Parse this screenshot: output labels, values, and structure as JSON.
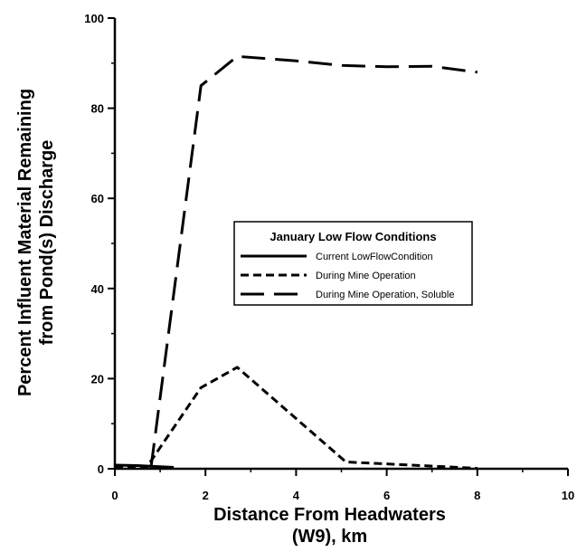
{
  "chart_data": {
    "type": "line",
    "title": "",
    "xlabel_lines": [
      "Distance From Headwaters",
      "(W9), km"
    ],
    "ylabel_lines": [
      "Percent Influent Material Remaining",
      "from Pond(s) Discharge"
    ],
    "xlim": [
      0,
      10
    ],
    "ylim": [
      0,
      100
    ],
    "x_ticks": [
      0,
      2,
      4,
      6,
      8,
      10
    ],
    "y_ticks": [
      0,
      20,
      40,
      60,
      80,
      100
    ],
    "grid": false,
    "legend": {
      "title": "January Low Flow Conditions",
      "placement": "center-right"
    },
    "series": [
      {
        "name": "Current LowFlowCondition",
        "style": "solid",
        "x": [
          0,
          0.5,
          1.3
        ],
        "y": [
          0.8,
          0.7,
          0.3
        ]
      },
      {
        "name": "During Mine Operation",
        "style": "dash",
        "x": [
          0,
          0.7,
          1.9,
          2.7,
          5.1,
          8.0
        ],
        "y": [
          0.5,
          0.3,
          18,
          22.5,
          1.5,
          0.1
        ]
      },
      {
        "name": "During Mine Operation, Soluble",
        "style": "longdash",
        "x": [
          0.8,
          1.9,
          2.7,
          4.0,
          5.0,
          6.0,
          7.0,
          8.0
        ],
        "y": [
          0.5,
          85,
          91.5,
          90.5,
          89.5,
          89.2,
          89.3,
          88
        ]
      }
    ],
    "colors": {
      "line": "#000000",
      "background": "#ffffff"
    }
  }
}
